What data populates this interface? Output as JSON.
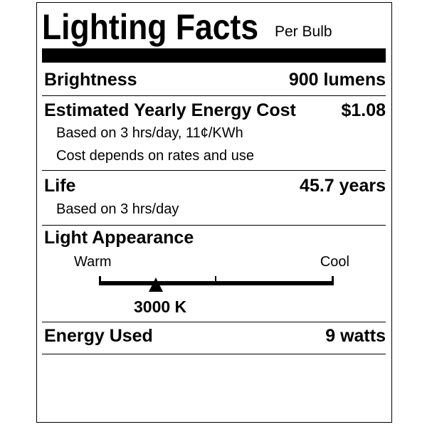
{
  "header": {
    "title": "Lighting Facts",
    "subtitle": "Per Bulb"
  },
  "brightness": {
    "label": "Brightness",
    "value": "900 lumens"
  },
  "energy_cost": {
    "label": "Estimated Yearly Energy Cost",
    "value": "$1.08",
    "note1": "Based on 3 hrs/day, 11¢/KWh",
    "note2": "Cost depends on rates and use"
  },
  "life": {
    "label": "Life",
    "value": "45.7 years",
    "note": "Based on 3 hrs/day"
  },
  "light_appearance": {
    "label": "Light Appearance",
    "warm_label": "Warm",
    "cool_label": "Cool",
    "value": "3000 K",
    "scale_position_fraction": 0.24
  },
  "energy_used": {
    "label": "Energy Used",
    "value": "9 watts"
  }
}
